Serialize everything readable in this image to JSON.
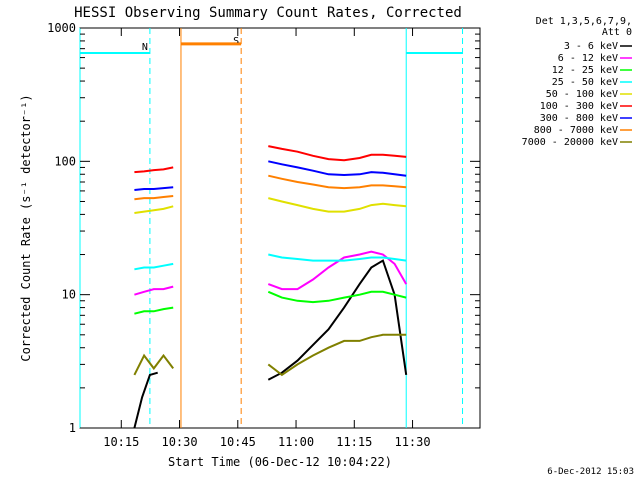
{
  "chart_data": {
    "type": "line",
    "title": "HESSI Observing Summary Count Rates, Corrected",
    "xlabel": "Start Time (06-Dec-12 10:04:22)",
    "ylabel": "Corrected Count Rate (s⁻¹ detector⁻¹)",
    "yscale": "log",
    "ylim": [
      1,
      1000
    ],
    "xlim_minutes_after_start": [
      0,
      103
    ],
    "x_unit_note": "minutes after 10:04:22",
    "yticks": [
      {
        "value": 1,
        "label": "1"
      },
      {
        "value": 10,
        "label": "10"
      },
      {
        "value": 100,
        "label": "100"
      },
      {
        "value": 1000,
        "label": "1000"
      }
    ],
    "xticks": [
      {
        "value": 10.63,
        "label": "10:15"
      },
      {
        "value": 25.63,
        "label": "10:30"
      },
      {
        "value": 40.63,
        "label": "10:45"
      },
      {
        "value": 55.63,
        "label": "11:00"
      },
      {
        "value": 70.63,
        "label": "11:15"
      },
      {
        "value": 85.63,
        "label": "11:30"
      }
    ],
    "legend_header": [
      "Det 1,3,5,6,7,9,",
      "Att 0"
    ],
    "legend_position": "top-right outside",
    "grid": false,
    "series": [
      {
        "name": "3 - 6 keV",
        "color": "#000000",
        "segments": [
          {
            "x": [
              14.0,
              16.0,
              18.0,
              20.0
            ],
            "y": [
              1.0,
              1.7,
              2.5,
              2.6
            ]
          },
          {
            "x": [
              48.5,
              52.0,
              56.0,
              60.0,
              64.0,
              68.0,
              72.0,
              75.0,
              78.0,
              81.0,
              84.0
            ],
            "y": [
              2.3,
              2.6,
              3.2,
              4.2,
              5.5,
              8.0,
              12.0,
              16.0,
              18.0,
              10.0,
              2.5
            ]
          }
        ]
      },
      {
        "name": "6 - 12 keV",
        "color": "#ff00ff",
        "segments": [
          {
            "x": [
              14.0,
              16.5,
              19.0,
              21.5,
              24.0
            ],
            "y": [
              10.0,
              10.5,
              11.0,
              11.0,
              11.5
            ]
          },
          {
            "x": [
              48.5,
              52.0,
              56.0,
              60.0,
              64.0,
              68.0,
              72.0,
              75.0,
              78.0,
              81.0,
              84.0
            ],
            "y": [
              12.0,
              11.0,
              11.0,
              13.0,
              16.0,
              19.0,
              20.0,
              21.0,
              20.0,
              17.0,
              12.0
            ]
          }
        ]
      },
      {
        "name": "12 - 25 keV",
        "color": "#00ff00",
        "segments": [
          {
            "x": [
              14.0,
              16.5,
              19.0,
              21.5,
              24.0
            ],
            "y": [
              7.2,
              7.5,
              7.5,
              7.8,
              8.0
            ]
          },
          {
            "x": [
              48.5,
              52.0,
              56.0,
              60.0,
              64.0,
              68.0,
              72.0,
              75.0,
              78.0,
              81.0,
              84.0
            ],
            "y": [
              10.5,
              9.5,
              9.0,
              8.8,
              9.0,
              9.5,
              10.0,
              10.5,
              10.5,
              10.0,
              9.5
            ]
          }
        ]
      },
      {
        "name": "25 - 50 keV",
        "color": "#00ffff",
        "segments": [
          {
            "x": [
              14.0,
              16.5,
              19.0,
              21.5,
              24.0
            ],
            "y": [
              15.5,
              16.0,
              16.0,
              16.5,
              17.0
            ]
          },
          {
            "x": [
              48.5,
              52.0,
              56.0,
              60.0,
              64.0,
              68.0,
              72.0,
              75.0,
              78.0,
              81.0,
              84.0
            ],
            "y": [
              20.0,
              19.0,
              18.5,
              18.0,
              18.0,
              18.0,
              18.5,
              19.0,
              19.0,
              18.5,
              18.0
            ]
          }
        ]
      },
      {
        "name": "50 - 100 keV",
        "color": "#e0e000",
        "segments": [
          {
            "x": [
              14.0,
              16.5,
              19.0,
              21.5,
              24.0
            ],
            "y": [
              41.0,
              42.0,
              43.0,
              44.0,
              46.0
            ]
          },
          {
            "x": [
              48.5,
              52.0,
              56.0,
              60.0,
              64.0,
              68.0,
              72.0,
              75.0,
              78.0,
              81.0,
              84.0
            ],
            "y": [
              53.0,
              50.0,
              47.0,
              44.0,
              42.0,
              42.0,
              44.0,
              47.0,
              48.0,
              47.0,
              46.0
            ]
          }
        ]
      },
      {
        "name": "100 - 300 keV",
        "color": "#ff0000",
        "segments": [
          {
            "x": [
              14.0,
              16.5,
              19.0,
              21.5,
              24.0
            ],
            "y": [
              83.0,
              84.0,
              86.0,
              87.0,
              90.0
            ]
          },
          {
            "x": [
              48.5,
              52.0,
              56.0,
              60.0,
              64.0,
              68.0,
              72.0,
              75.0,
              78.0,
              81.0,
              84.0
            ],
            "y": [
              130.0,
              124.0,
              118.0,
              110.0,
              104.0,
              102.0,
              106.0,
              112.0,
              112.0,
              110.0,
              108.0
            ]
          }
        ]
      },
      {
        "name": "300 - 800 keV",
        "color": "#0000ff",
        "segments": [
          {
            "x": [
              14.0,
              16.5,
              19.0,
              21.5,
              24.0
            ],
            "y": [
              61.0,
              62.0,
              62.0,
              63.0,
              64.0
            ]
          },
          {
            "x": [
              48.5,
              52.0,
              56.0,
              60.0,
              64.0,
              68.0,
              72.0,
              75.0,
              78.0,
              81.0,
              84.0
            ],
            "y": [
              100.0,
              95.0,
              90.0,
              85.0,
              80.0,
              79.0,
              80.0,
              83.0,
              82.0,
              80.0,
              78.0
            ]
          }
        ]
      },
      {
        "name": "800 - 7000 keV",
        "color": "#ff8000",
        "segments": [
          {
            "x": [
              14.0,
              16.5,
              19.0,
              21.5,
              24.0
            ],
            "y": [
              52.0,
              53.0,
              53.0,
              54.0,
              55.0
            ]
          },
          {
            "x": [
              48.5,
              52.0,
              56.0,
              60.0,
              64.0,
              68.0,
              72.0,
              75.0,
              78.0,
              81.0,
              84.0
            ],
            "y": [
              78.0,
              74.0,
              70.0,
              67.0,
              64.0,
              63.0,
              64.0,
              66.0,
              66.0,
              65.0,
              64.0
            ]
          },
          {
            "x": [
              26.0,
              41.0
            ],
            "y": [
              760.0,
              760.0
            ]
          }
        ]
      },
      {
        "name": "7000 - 20000 keV",
        "color": "#808000",
        "segments": [
          {
            "x": [
              14.0,
              16.5,
              19.0,
              21.5,
              24.0
            ],
            "y": [
              2.5,
              3.5,
              2.8,
              3.5,
              2.8
            ]
          },
          {
            "x": [
              48.5,
              52.0,
              56.0,
              60.0,
              64.0,
              68.0,
              72.0,
              75.0,
              78.0,
              81.0,
              84.0
            ],
            "y": [
              3.0,
              2.5,
              3.0,
              3.5,
              4.0,
              4.5,
              4.5,
              4.8,
              5.0,
              5.0,
              5.0
            ]
          }
        ]
      }
    ],
    "annotations": [
      {
        "label": "N",
        "color": "#00ffff",
        "style": "dashed",
        "x_start": 18.0
      },
      {
        "label": "S",
        "color": "#ff8000",
        "style": "dashed",
        "x_start": 41.5
      },
      {
        "label": "",
        "color": "#00ffff",
        "style": "dashed",
        "x_start": 98.5
      }
    ],
    "night_intervals": [
      {
        "x": [
          0,
          18.0
        ],
        "level": 650,
        "color": "#00ffff"
      },
      {
        "x": [
          84.0,
          98.5
        ],
        "level": 650,
        "color": "#00ffff"
      }
    ],
    "saa_interval": {
      "x": [
        26.0,
        41.5
      ],
      "color": "#ff8000"
    },
    "solid_boundaries": [
      {
        "x": 0.0,
        "color": "#00ffff"
      },
      {
        "x": 26.0,
        "color": "#ff8000"
      },
      {
        "x": 84.0,
        "color": "#00ffff"
      }
    ],
    "footer_date": "6-Dec-2012 15:03"
  }
}
